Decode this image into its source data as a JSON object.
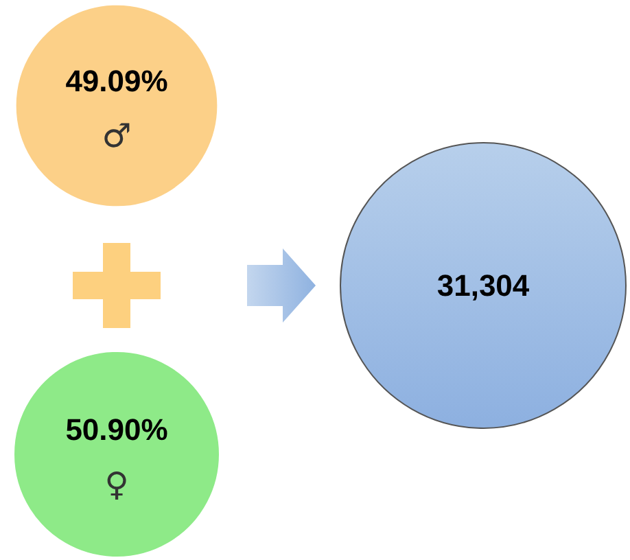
{
  "chart_data": {
    "type": "other",
    "categories": [
      "♂",
      "♀"
    ],
    "values": [
      49.09,
      50.9
    ],
    "value_labels": [
      "49.09%",
      "50.90%"
    ],
    "colors": [
      "#fcd088",
      "#8eea88"
    ],
    "annotations": [
      "31,304"
    ]
  }
}
